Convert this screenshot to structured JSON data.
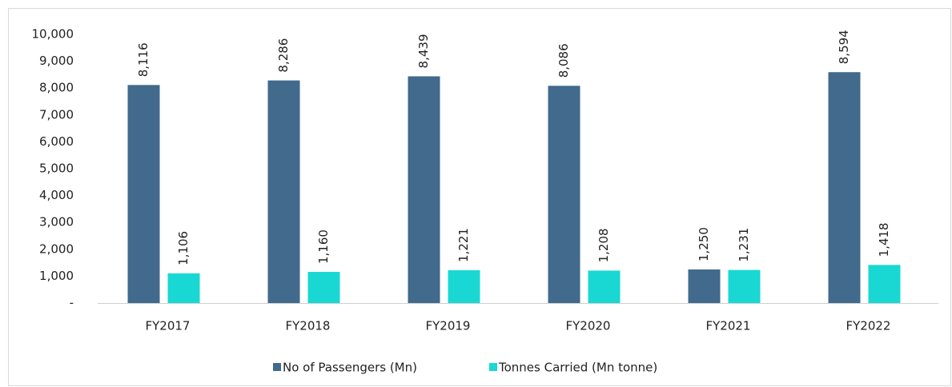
{
  "chart_data": {
    "type": "bar",
    "categories": [
      "FY2017",
      "FY2018",
      "FY2019",
      "FY2020",
      "FY2021",
      "FY2022"
    ],
    "series": [
      {
        "name": "No of Passengers (Mn)",
        "color": "#416a8c",
        "values": [
          8116,
          8286,
          8439,
          8086,
          1250,
          8594
        ],
        "value_labels": [
          "8,116",
          "8,286",
          "8,439",
          "8,086",
          "1,250",
          "8,594"
        ]
      },
      {
        "name": "Tonnes Carried (Mn tonne)",
        "color": "#19d8d3",
        "values": [
          1106,
          1160,
          1221,
          1208,
          1231,
          1418
        ],
        "value_labels": [
          "1,106",
          "1,160",
          "1,221",
          "1,208",
          "1,231",
          "1,418"
        ]
      }
    ],
    "ylim": [
      0,
      10000
    ],
    "yticks": [
      {
        "value": 0,
        "label": "-"
      },
      {
        "value": 1000,
        "label": "1,000"
      },
      {
        "value": 2000,
        "label": "2,000"
      },
      {
        "value": 3000,
        "label": "3,000"
      },
      {
        "value": 4000,
        "label": "4,000"
      },
      {
        "value": 5000,
        "label": "5,000"
      },
      {
        "value": 6000,
        "label": "6,000"
      },
      {
        "value": 7000,
        "label": "7,000"
      },
      {
        "value": 8000,
        "label": "8,000"
      },
      {
        "value": 9000,
        "label": "9,000"
      },
      {
        "value": 10000,
        "label": "10,000"
      }
    ],
    "grid": false,
    "legend": "bottom"
  }
}
